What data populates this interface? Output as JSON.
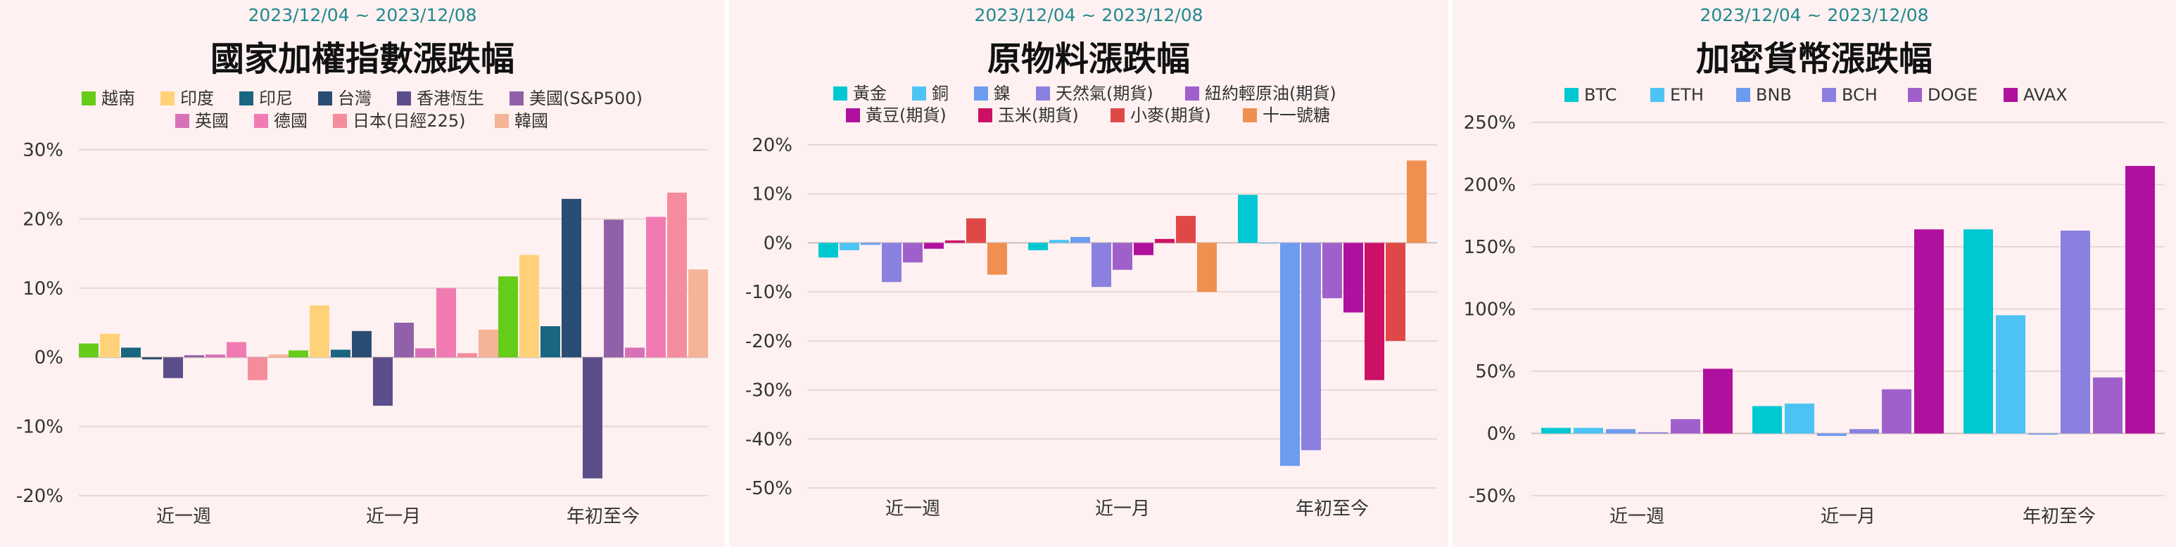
{
  "chart_data": [
    {
      "type": "bar",
      "date_range": "2023/12/04 ~ 2023/12/08",
      "title": "國家加權指數漲跌幅",
      "categories": [
        "近一週",
        "近一月",
        "年初至今"
      ],
      "ylim": [
        -20,
        30
      ],
      "yticks": [
        -20,
        -10,
        0,
        10,
        20,
        30
      ],
      "tick_suffix": "%",
      "grid": true,
      "legend_position": "top",
      "series": [
        {
          "name": "越南",
          "color": "#66cc1a",
          "values": [
            2,
            1,
            11.7
          ]
        },
        {
          "name": "印度",
          "color": "#ffd27a",
          "values": [
            3.4,
            7.5,
            14.8
          ]
        },
        {
          "name": "印尼",
          "color": "#1a6680",
          "values": [
            1.4,
            1.1,
            4.5
          ]
        },
        {
          "name": "台灣",
          "color": "#2a4d73",
          "values": [
            -0.3,
            3.8,
            22.9
          ]
        },
        {
          "name": "香港恆生",
          "color": "#5c4e8a",
          "values": [
            -3,
            -7,
            -17.5
          ]
        },
        {
          "name": "美國(S&P500)",
          "color": "#9060a8",
          "values": [
            0.3,
            5,
            19.9
          ]
        },
        {
          "name": "英國",
          "color": "#d870b8",
          "values": [
            0.4,
            1.3,
            1.4
          ]
        },
        {
          "name": "德國",
          "color": "#f27ab2",
          "values": [
            2.2,
            10,
            20.3
          ]
        },
        {
          "name": "日本(日經225)",
          "color": "#f58c9c",
          "values": [
            -3.3,
            0.6,
            23.8
          ]
        },
        {
          "name": "韓國",
          "color": "#f5b498",
          "values": [
            0.4,
            4,
            12.7
          ]
        }
      ]
    },
    {
      "type": "bar",
      "date_range": "2023/12/04 ~ 2023/12/08",
      "title": "原物料漲跌幅",
      "categories": [
        "近一週",
        "近一月",
        "年初至今"
      ],
      "ylim": [
        -50,
        20
      ],
      "yticks": [
        -50,
        -40,
        -30,
        -20,
        -10,
        0,
        10,
        20
      ],
      "tick_suffix": "%",
      "grid": true,
      "legend_position": "top",
      "series": [
        {
          "name": "黃金",
          "color": "#00c8d2",
          "values": [
            -3,
            -1.5,
            9.8
          ]
        },
        {
          "name": "銅",
          "color": "#4dc3f5",
          "values": [
            -1.5,
            0.6,
            0
          ]
        },
        {
          "name": "鎳",
          "color": "#6c9cf0",
          "values": [
            -0.4,
            1.2,
            -45.5
          ]
        },
        {
          "name": "天然氣(期貨)",
          "color": "#8a80e0",
          "values": [
            -8,
            -9,
            -42.3
          ]
        },
        {
          "name": "紐約輕原油(期貨)",
          "color": "#a060cc",
          "values": [
            -4,
            -5.5,
            -11.3
          ]
        },
        {
          "name": "黃豆(期貨)",
          "color": "#b0109e",
          "values": [
            -1.2,
            -2.5,
            -14.2
          ]
        },
        {
          "name": "玉米(期貨)",
          "color": "#cc1065",
          "values": [
            0.5,
            0.8,
            -28
          ]
        },
        {
          "name": "小麥(期貨)",
          "color": "#e04848",
          "values": [
            5,
            5.5,
            -20
          ]
        },
        {
          "name": "十一號糖",
          "color": "#f09050",
          "values": [
            -6.5,
            -10,
            16.8
          ]
        }
      ]
    },
    {
      "type": "bar",
      "date_range": "2023/12/04 ~ 2023/12/08",
      "title": "加密貨幣漲跌幅",
      "categories": [
        "近一週",
        "近一月",
        "年初至今"
      ],
      "ylim": [
        -50,
        250
      ],
      "yticks": [
        -50,
        0,
        50,
        100,
        150,
        200,
        250
      ],
      "tick_suffix": "%",
      "grid": true,
      "legend_position": "top",
      "series": [
        {
          "name": "BTC",
          "color": "#00c8d2",
          "values": [
            4.5,
            22,
            164
          ]
        },
        {
          "name": "ETH",
          "color": "#4dc3f5",
          "values": [
            4.5,
            24,
            95
          ]
        },
        {
          "name": "BNB",
          "color": "#6c9cf0",
          "values": [
            3.5,
            -2,
            -1
          ]
        },
        {
          "name": "BCH",
          "color": "#8a80e0",
          "values": [
            1,
            3.5,
            163
          ]
        },
        {
          "name": "DOGE",
          "color": "#a060cc",
          "values": [
            11.5,
            35.5,
            45
          ]
        },
        {
          "name": "AVAX",
          "color": "#b0109e",
          "values": [
            52,
            164,
            215
          ]
        }
      ]
    }
  ]
}
